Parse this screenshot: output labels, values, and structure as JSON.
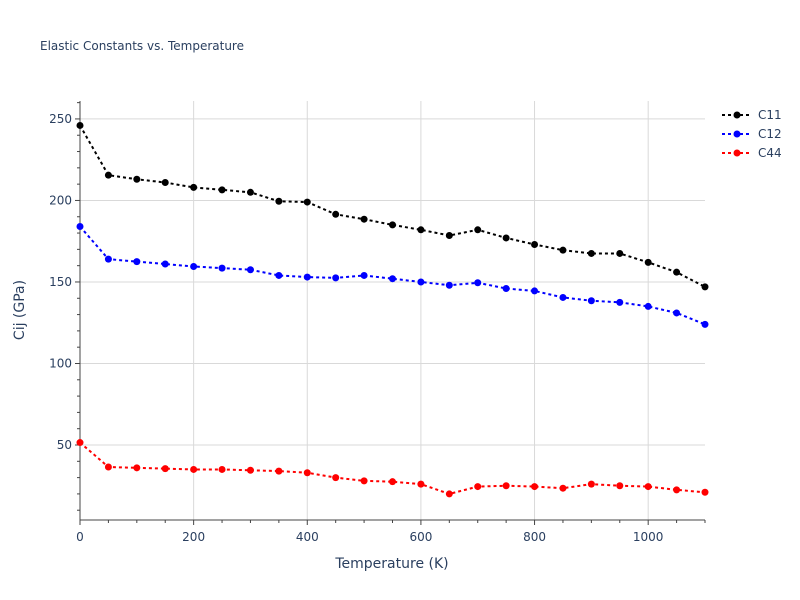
{
  "chart_data": {
    "type": "line",
    "title": "Elastic Constants vs. Temperature",
    "xlabel": "Temperature (K)",
    "ylabel": "Cij (GPa)",
    "xlim": [
      0,
      1100
    ],
    "ylim": [
      4,
      261
    ],
    "xticks": [
      0,
      200,
      400,
      600,
      800,
      1000
    ],
    "yticks": [
      50,
      100,
      150,
      200,
      250
    ],
    "grid": true,
    "legend_position": "top-right",
    "x": [
      0,
      50,
      100,
      150,
      200,
      250,
      300,
      350,
      400,
      450,
      500,
      550,
      600,
      650,
      700,
      750,
      800,
      850,
      900,
      950,
      1000,
      1050,
      1100
    ],
    "series": [
      {
        "name": "C11",
        "color": "#000000",
        "line_style": "dotted",
        "values": [
          246,
          215.5,
          213,
          211,
          208,
          206.5,
          205,
          199.5,
          199,
          191.5,
          188.5,
          185,
          182,
          178.5,
          182,
          177,
          173,
          169.5,
          167.5,
          167.5,
          162,
          156,
          147
        ]
      },
      {
        "name": "C12",
        "color": "#0000ff",
        "line_style": "dotted",
        "values": [
          184,
          164,
          162.5,
          161,
          159.5,
          158.5,
          157.5,
          154,
          153,
          152.5,
          154,
          152,
          150,
          148,
          149.5,
          146,
          144.5,
          140.5,
          138.5,
          137.5,
          135,
          131,
          124
        ]
      },
      {
        "name": "C44",
        "color": "#ff0000",
        "line_style": "dotted",
        "values": [
          51.5,
          36.5,
          36,
          35.5,
          35,
          35,
          34.5,
          34,
          33,
          30,
          28,
          27.5,
          26,
          20,
          24.5,
          25,
          24.5,
          23.5,
          26,
          25,
          24.5,
          22.5,
          21
        ]
      }
    ]
  }
}
